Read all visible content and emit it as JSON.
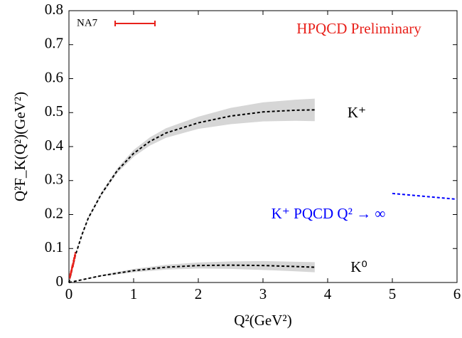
{
  "chart_data": {
    "type": "line",
    "title": "HPQCD Preliminary",
    "x_label": "Q²(GeV²)",
    "y_label": "Q²F_K(Q²)(GeV²)",
    "xlim": [
      0,
      6
    ],
    "ylim": [
      0,
      0.8
    ],
    "xticks": [
      0,
      1,
      2,
      3,
      4,
      5,
      6
    ],
    "yticks": [
      0,
      0.1,
      0.2,
      0.3,
      0.4,
      0.5,
      0.6,
      0.7,
      0.8
    ],
    "series": [
      {
        "name": "K⁺",
        "color": "#000000",
        "x": [
          0,
          0.1,
          0.2,
          0.3,
          0.5,
          0.75,
          1.0,
          1.25,
          1.5,
          2.0,
          2.5,
          3.0,
          3.5,
          3.8
        ],
        "values": [
          0,
          0.08,
          0.14,
          0.19,
          0.26,
          0.33,
          0.38,
          0.415,
          0.44,
          0.47,
          0.49,
          0.502,
          0.507,
          0.508
        ],
        "lower": [
          0,
          0.078,
          0.137,
          0.186,
          0.255,
          0.323,
          0.37,
          0.403,
          0.426,
          0.452,
          0.466,
          0.474,
          0.476,
          0.475
        ],
        "upper": [
          0,
          0.082,
          0.143,
          0.194,
          0.265,
          0.337,
          0.39,
          0.427,
          0.454,
          0.488,
          0.514,
          0.53,
          0.538,
          0.541
        ]
      },
      {
        "name": "K⁰",
        "color": "#000000",
        "x": [
          0,
          0.5,
          1.0,
          1.5,
          2.0,
          2.5,
          3.0,
          3.5,
          3.8
        ],
        "values": [
          0,
          0.02,
          0.035,
          0.045,
          0.05,
          0.051,
          0.05,
          0.047,
          0.045
        ],
        "lower": [
          0,
          0.018,
          0.03,
          0.038,
          0.041,
          0.04,
          0.037,
          0.033,
          0.03
        ],
        "upper": [
          0,
          0.022,
          0.04,
          0.052,
          0.059,
          0.062,
          0.063,
          0.061,
          0.06
        ]
      },
      {
        "name": "K⁺ PQCD Q² → ∞",
        "color": "#0000ff",
        "x": [
          5,
          6
        ],
        "values": [
          0.262,
          0.245
        ]
      },
      {
        "name": "NA7",
        "color": "#e8211b",
        "x": [
          0.017,
          0.025,
          0.033,
          0.04,
          0.05,
          0.058,
          0.067,
          0.075,
          0.085,
          0.095
        ],
        "values": [
          0.018,
          0.025,
          0.03,
          0.035,
          0.045,
          0.05,
          0.055,
          0.065,
          0.072,
          0.08
        ],
        "errors": [
          0.008,
          0.008,
          0.008,
          0.008,
          0.008,
          0.008,
          0.009,
          0.009,
          0.01,
          0.01
        ]
      }
    ]
  }
}
